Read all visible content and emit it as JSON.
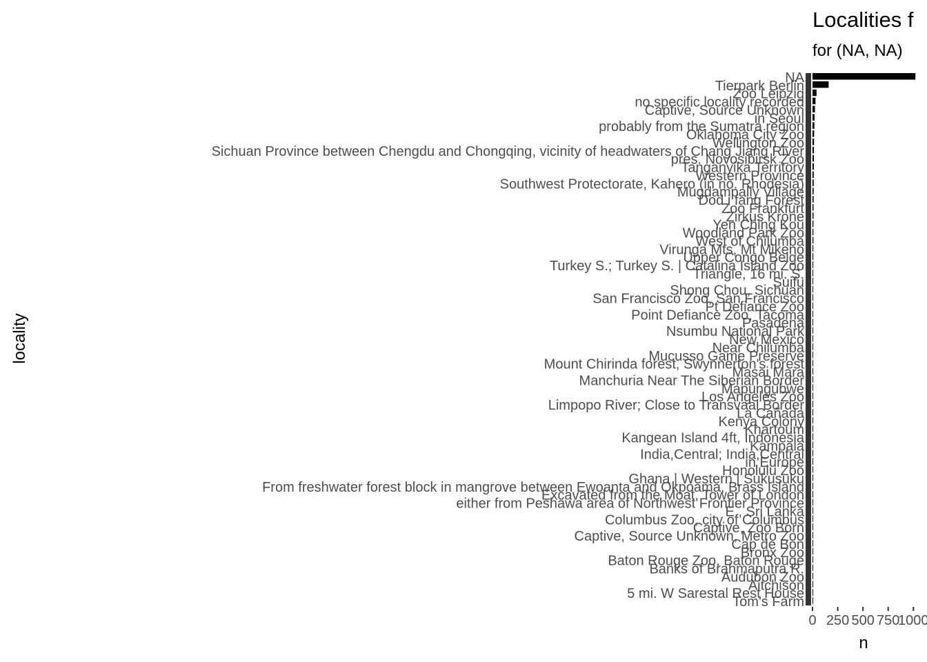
{
  "chart_data": {
    "type": "bar",
    "orientation": "horizontal",
    "title": "Localities f",
    "subtitle": "for (NA, NA)",
    "xlabel": "n",
    "ylabel": "locality",
    "xlim": [
      0,
      1080
    ],
    "x_ticks": [
      "0",
      "250",
      "500",
      "750",
      "1000"
    ],
    "x_tick_values": [
      0,
      250,
      500,
      750,
      1000
    ],
    "grid": false,
    "bar_color": "#000000",
    "categories": [
      "NA",
      "Tierpark Berlin",
      "Zoo Leipzig",
      "no specific locality recorded",
      "Captive, Source Unknown",
      "in Seoul",
      "probably from the Sumatra region",
      "Oklahoma City Zoo",
      "Wellington Zoo",
      "Sichuan Province between Chengdu and Chongqing, vicinity of headwaters of Chang Jiang River",
      "pres. Novosibirsk Zoo",
      "Tanganyika Territory",
      "Western Province",
      "Southwest Protectorate, Kahero (in no. Rhodesia)",
      "Mugdampally Village",
      "Dod i fang Forest",
      "Zoo Frankfurt",
      "Zirkus Krone",
      "Yen Ching Kou",
      "Woodland Park Zoo",
      "West of Chilumba",
      "Virunga Mts, Mt Mikeno",
      "Upper Congo Belge",
      "Turkey S.; Turkey S. | Catalina Island Zoo",
      "Triangle, 16 mi. S.",
      "Suifu",
      "Shong Chou, Sichuan",
      "San Francisco Zoo, San Francisco",
      "Pt Defiance Zoo",
      "Point Defiance Zoo, Tacoma",
      "Pasadena",
      "Nsumbu National Park",
      "New Mexico",
      "Near Chilumba",
      "Mucusso Game Preserve",
      "Mount Chirinda forest, Swynnerton's forest",
      "Masai Mara",
      "Manchuria Near The Siberian Border",
      "Mapungubwe",
      "Los Angeles Zoo",
      "Limpopo River; Close to Transvaal Border",
      "La Cañada",
      "Kenya Colony",
      "Khartoum",
      "Kangean Island 4ft, Indonesia",
      "Kampala",
      "India,Central; India,Central",
      "in Europe",
      "Honolulu Zoo",
      "Ghana | Western | Sukusuku",
      "From freshwater forest block in mangrove between Ewoanta and Okpoama, Brass Island",
      "Excavated from the Moat, Tower of London",
      "either from Peshawa area of Northwest Frontier Province",
      "E., Sri Lanka",
      "Columbus Zoo, city of Columbus",
      "Captive, Zoo Born",
      "Captive, Source Unknown, Metro Zoo",
      "Cap de Bon",
      "Bronx Zoo",
      "Baton Rouge Zoo, Baton Rouge",
      "Banks of Brahmaputra R.",
      "Audubon Zoo",
      "Aitchison",
      "5 mi. W Sarestal Rest House",
      "Tom's Farm"
    ],
    "values": [
      1020,
      160,
      40,
      30,
      24,
      20,
      18,
      16,
      15,
      14,
      14,
      13,
      12,
      12,
      11,
      11,
      10,
      10,
      9,
      9,
      9,
      8,
      8,
      8,
      7,
      7,
      7,
      7,
      6,
      6,
      6,
      6,
      5,
      5,
      5,
      5,
      5,
      4,
      4,
      4,
      4,
      4,
      4,
      3,
      3,
      3,
      3,
      3,
      3,
      3,
      3,
      2,
      2,
      2,
      2,
      2,
      2,
      2,
      2,
      2,
      2,
      2,
      2,
      1,
      1
    ]
  }
}
